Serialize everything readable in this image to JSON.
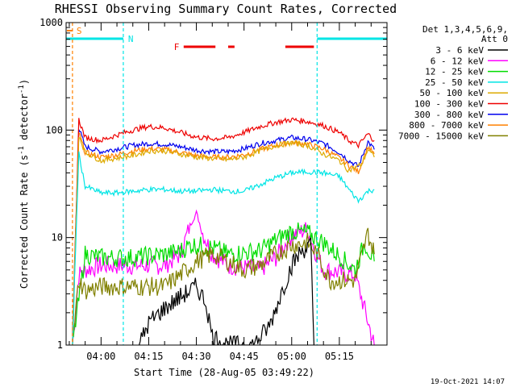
{
  "chart_data": {
    "type": "line",
    "title": "RHESSI Observing Summary Count Rates, Corrected",
    "xlabel": "Start Time (28-Aug-05 03:49:22)",
    "ylabel_main": "Corrected Count Rate (s",
    "ylabel_sup1": "-1",
    "ylabel_mid": " detector",
    "ylabel_sup2": "-1",
    "ylabel_end": ")",
    "y_scale": "log",
    "ylim": [
      1,
      1000
    ],
    "xlim": [
      "03:49",
      "05:30"
    ],
    "x_ticks": [
      "04:00",
      "04:15",
      "04:30",
      "04:45",
      "05:00",
      "05:15"
    ],
    "y_ticks": [
      "1",
      "10",
      "100",
      "1000"
    ],
    "legend_header": [
      "Det 1,3,4,5,6,9,",
      "Att 0"
    ],
    "legend_position": "right",
    "footer_timestamp": "19-Oct-2021 14:07",
    "flags": {
      "saa_label": "S",
      "night_label": "N",
      "flare_label": "F",
      "saa_color": "#ff8000",
      "night_color": "#00e5e5",
      "flare_color": "#ee0000",
      "night_intervals": [
        [
          "03:49",
          "04:07"
        ],
        [
          "05:08",
          "05:30"
        ]
      ],
      "flare_intervals": [
        [
          "04:26",
          "04:36"
        ],
        [
          "04:40",
          "04:42"
        ],
        [
          "04:58",
          "05:07"
        ]
      ],
      "saa_marker": "03:51"
    },
    "series": [
      {
        "name": "3 - 6 keV",
        "color": "#000000",
        "x": [
          "04:12",
          "04:15",
          "04:20",
          "04:25",
          "04:30",
          "04:33",
          "04:35",
          "04:40",
          "04:48",
          "04:53",
          "04:57",
          "05:00",
          "05:03",
          "05:06",
          "05:07"
        ],
        "values": [
          1.0,
          1.6,
          2.2,
          2.8,
          3.5,
          2.5,
          1.2,
          1.0,
          1.0,
          1.5,
          3.2,
          5.5,
          7.5,
          8.5,
          1.0
        ]
      },
      {
        "name": "6 - 12 keV",
        "color": "#ff00ff",
        "x": [
          "03:51",
          "03:53",
          "03:55",
          "04:00",
          "04:10",
          "04:20",
          "04:25",
          "04:28",
          "04:30",
          "04:32",
          "04:35",
          "04:40",
          "04:50",
          "04:55",
          "05:00",
          "05:05",
          "05:07",
          "05:10",
          "05:20",
          "05:26"
        ],
        "values": [
          1.0,
          4.5,
          5.0,
          5.5,
          5.5,
          5.5,
          7.0,
          13.0,
          17.0,
          11.0,
          7.0,
          5.5,
          5.0,
          6.5,
          10.5,
          12.0,
          8.0,
          5.0,
          4.5,
          1.0
        ]
      },
      {
        "name": "12 - 25 keV",
        "color": "#00dd00",
        "x": [
          "03:51",
          "03:55",
          "04:00",
          "04:10",
          "04:20",
          "04:25",
          "04:28",
          "04:30",
          "04:35",
          "04:40",
          "04:50",
          "04:55",
          "05:00",
          "05:05",
          "05:10",
          "05:20",
          "05:23",
          "05:26"
        ],
        "values": [
          1.0,
          7.0,
          6.5,
          6.5,
          7.0,
          7.5,
          8.5,
          8.5,
          8.0,
          7.0,
          7.5,
          9.5,
          11.5,
          11.0,
          9.0,
          5.0,
          9.0,
          6.0
        ]
      },
      {
        "name": "25 - 50 keV",
        "color": "#00e5e5",
        "x": [
          "03:51",
          "03:53",
          "03:55",
          "04:00",
          "04:05",
          "04:10",
          "04:15",
          "04:20",
          "04:25",
          "04:30",
          "04:35",
          "04:40",
          "04:45",
          "04:50",
          "04:55",
          "05:00",
          "05:05",
          "05:10",
          "05:15",
          "05:18",
          "05:21",
          "05:24",
          "05:26"
        ],
        "values": [
          1.0,
          60.0,
          30.0,
          26.0,
          26.0,
          27.0,
          28.0,
          28.0,
          27.0,
          27.0,
          28.0,
          27.0,
          27.0,
          31.0,
          36.0,
          40.0,
          41.0,
          40.0,
          37.0,
          28.0,
          22.0,
          27.0,
          28.0
        ]
      },
      {
        "name": "50 - 100 keV",
        "color": "#ddaa00",
        "x": [
          "03:51",
          "03:53",
          "03:55",
          "04:00",
          "04:10",
          "04:15",
          "04:20",
          "04:30",
          "04:40",
          "04:45",
          "04:50",
          "04:55",
          "05:00",
          "05:05",
          "05:10",
          "05:15",
          "05:18",
          "05:22",
          "05:24",
          "05:26"
        ],
        "values": [
          1.0,
          90.0,
          62.0,
          52.0,
          58.0,
          64.0,
          64.0,
          56.0,
          53.0,
          56.0,
          64.0,
          72.0,
          76.0,
          72.0,
          60.0,
          52.0,
          42.0,
          48.0,
          66.0,
          56.0
        ]
      },
      {
        "name": "100 - 300 keV",
        "color": "#ee0000",
        "x": [
          "03:51",
          "03:53",
          "03:55",
          "04:00",
          "04:05",
          "04:10",
          "04:15",
          "04:20",
          "04:25",
          "04:30",
          "04:35",
          "04:40",
          "04:45",
          "04:50",
          "04:55",
          "05:00",
          "05:05",
          "05:10",
          "05:15",
          "05:18",
          "05:21",
          "05:24",
          "05:26"
        ],
        "values": [
          1.0,
          125.0,
          85.0,
          80.0,
          90.0,
          100.0,
          108.0,
          105.0,
          95.0,
          86.0,
          83.0,
          85.0,
          95.0,
          108.0,
          118.0,
          125.0,
          120.0,
          110.0,
          95.0,
          80.0,
          72.0,
          92.0,
          80.0
        ]
      },
      {
        "name": "300 - 800 keV",
        "color": "#0000ee",
        "x": [
          "03:51",
          "03:53",
          "03:55",
          "04:00",
          "04:05",
          "04:10",
          "04:15",
          "04:20",
          "04:25",
          "04:30",
          "04:35",
          "04:40",
          "04:45",
          "04:50",
          "04:55",
          "05:00",
          "05:05",
          "05:10",
          "05:15",
          "05:18",
          "05:21",
          "05:24",
          "05:26"
        ],
        "values": [
          1.0,
          105.0,
          70.0,
          63.0,
          67.0,
          72.0,
          75.0,
          74.0,
          70.0,
          65.0,
          63.0,
          63.0,
          67.0,
          75.0,
          80.0,
          85.0,
          82.0,
          75.0,
          62.0,
          52.0,
          46.0,
          78.0,
          66.0
        ]
      },
      {
        "name": "800 - 7000 keV",
        "color": "#ff8000",
        "x": [
          "03:51",
          "03:53",
          "03:55",
          "04:00",
          "04:05",
          "04:10",
          "04:15",
          "04:20",
          "04:25",
          "04:30",
          "04:35",
          "04:40",
          "04:45",
          "04:50",
          "04:55",
          "05:00",
          "05:05",
          "05:10",
          "05:15",
          "05:18",
          "05:21",
          "05:24",
          "05:26"
        ],
        "values": [
          1.0,
          95.0,
          62.0,
          56.0,
          59.0,
          64.0,
          67.0,
          66.0,
          62.0,
          58.0,
          56.0,
          56.0,
          59.0,
          66.0,
          72.0,
          77.0,
          74.0,
          67.0,
          55.0,
          47.0,
          41.0,
          70.0,
          60.0
        ]
      },
      {
        "name": "7000 - 15000 keV",
        "color": "#808000",
        "x": [
          "03:51",
          "03:53",
          "03:55",
          "04:00",
          "04:10",
          "04:20",
          "04:25",
          "04:30",
          "04:35",
          "04:40",
          "04:45",
          "04:50",
          "04:55",
          "05:00",
          "05:05",
          "05:08",
          "05:12",
          "05:20",
          "05:24",
          "05:26"
        ],
        "values": [
          1.0,
          4.0,
          3.2,
          3.5,
          3.5,
          3.5,
          4.5,
          6.0,
          7.0,
          6.0,
          5.0,
          5.5,
          7.0,
          8.5,
          9.0,
          7.0,
          4.0,
          4.0,
          11.0,
          7.0
        ]
      }
    ]
  }
}
